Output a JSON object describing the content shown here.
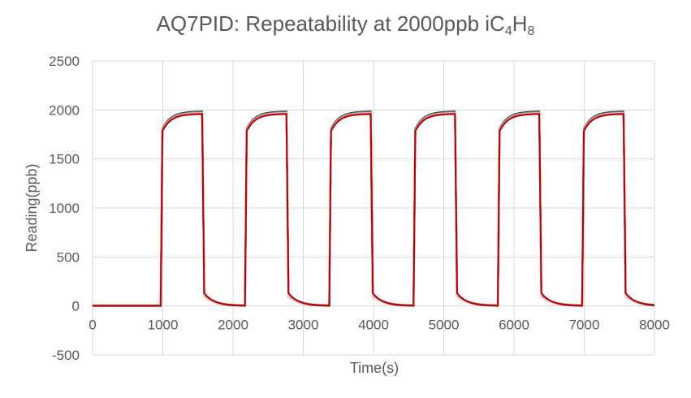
{
  "title": {
    "main": "AQ7PID: Repeatability at 2000ppb iC",
    "sub1": "4",
    "mid": "H",
    "sub2": "8"
  },
  "chart_data": {
    "type": "line",
    "title": "AQ7PID: Repeatability at 2000ppb iC4H8",
    "xlabel": "Time(s)",
    "ylabel": "Reading(ppb)",
    "xlim": [
      0,
      8000
    ],
    "ylim": [
      -500,
      2500
    ],
    "xticks": [
      0,
      1000,
      2000,
      3000,
      4000,
      5000,
      6000,
      7000,
      8000
    ],
    "yticks": [
      -500,
      0,
      500,
      1000,
      1500,
      2000,
      2500
    ],
    "grid": true,
    "legend": "none",
    "exposure_cycles": [
      {
        "on": 970,
        "off": 1560
      },
      {
        "on": 2170,
        "off": 2760
      },
      {
        "on": 3370,
        "off": 3960
      },
      {
        "on": 4570,
        "off": 5160
      },
      {
        "on": 5770,
        "off": 6360
      },
      {
        "on": 6970,
        "off": 7560
      }
    ],
    "series": [
      {
        "color": "#404040",
        "baseline": 0,
        "plateau": 1985,
        "tail": 110
      },
      {
        "color": "#595959",
        "baseline": 5,
        "plateau": 1980,
        "tail": 95
      },
      {
        "color": "#7f7f7f",
        "baseline": 3,
        "plateau": 1975,
        "tail": 100
      },
      {
        "color": "#bfbfbf",
        "baseline": 8,
        "plateau": 1970,
        "tail": 120
      },
      {
        "color": "#d9d9d9",
        "baseline": 6,
        "plateau": 1965,
        "tail": 90
      },
      {
        "color": "#c00000",
        "baseline": 2,
        "plateau": 1960,
        "tail": 130
      }
    ]
  }
}
